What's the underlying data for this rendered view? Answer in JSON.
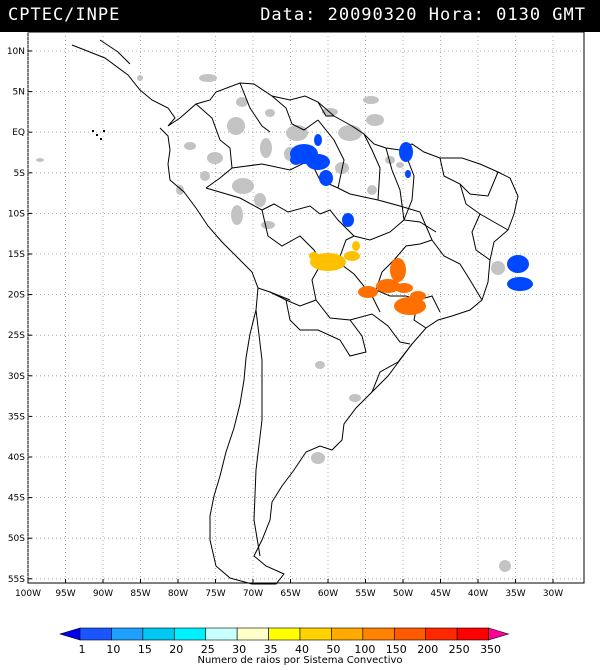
{
  "header": {
    "left": "CPTEC/INPE",
    "right": "Data: 20090320 Hora: 0130 GMT"
  },
  "map": {
    "lat_labels": [
      "10N",
      "5N",
      "EQ",
      "5S",
      "10S",
      "15S",
      "20S",
      "25S",
      "30S",
      "35S",
      "40S",
      "45S",
      "50S",
      "55S"
    ],
    "lon_labels": [
      "100W",
      "95W",
      "90W",
      "85W",
      "80W",
      "75W",
      "70W",
      "65W",
      "60W",
      "55W",
      "50W",
      "45W",
      "40W",
      "35W",
      "30W"
    ],
    "colors": {
      "land_line": "#000000",
      "grid": "#9a9a9a",
      "cloud": "#c3c3c3"
    }
  },
  "colorbar": {
    "labels": [
      "1",
      "10",
      "15",
      "20",
      "25",
      "30",
      "35",
      "40",
      "50",
      "100",
      "150",
      "200",
      "250",
      "350"
    ],
    "colors": [
      "#0000ee",
      "#1a55ff",
      "#1ea0ff",
      "#00c8f0",
      "#00f0ff",
      "#c8ffff",
      "#ffffc8",
      "#ffff00",
      "#ffd200",
      "#ffaa00",
      "#ff8200",
      "#ff5a00",
      "#ff2800",
      "#ff0000",
      "#ff0096"
    ],
    "caption": "Numero de raios por Sistema Convectivo"
  },
  "systems": [
    {
      "name": "amazon-cluster",
      "color": "#0048ff"
    },
    {
      "name": "para-cluster",
      "color": "#0048ff"
    },
    {
      "name": "mato-grosso-cluster",
      "color": "#0048ff"
    },
    {
      "name": "atlantic-cluster",
      "color": "#0048ff"
    },
    {
      "name": "bolivia-cluster",
      "color": "#ffc000"
    },
    {
      "name": "minas-cluster",
      "color": "#ff7000"
    },
    {
      "name": "sao-paulo-cluster",
      "color": "#ff7000"
    }
  ]
}
